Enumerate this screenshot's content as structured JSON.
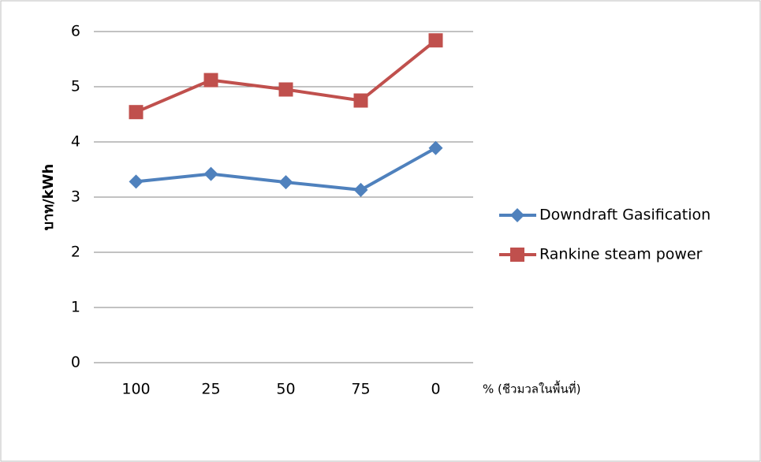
{
  "chart_data": {
    "type": "line",
    "y_label": "บาท/kWh",
    "x_label": "% (ชีวมวลในพื้นที่)",
    "categories": [
      "100",
      "25",
      "50",
      "75",
      "0"
    ],
    "series": [
      {
        "name": "Downdraft Gasification",
        "color": "#4f81bd",
        "marker": "diamond",
        "values": [
          3.28,
          3.42,
          3.27,
          3.13,
          3.89
        ]
      },
      {
        "name": "Rankine steam power",
        "color": "#c0504d",
        "marker": "square",
        "values": [
          4.54,
          5.12,
          4.95,
          4.75,
          5.84
        ]
      }
    ],
    "ylim": [
      0,
      6
    ],
    "yticks": [
      0,
      1,
      2,
      3,
      4,
      5,
      6
    ],
    "grid": true,
    "legend": "right"
  }
}
